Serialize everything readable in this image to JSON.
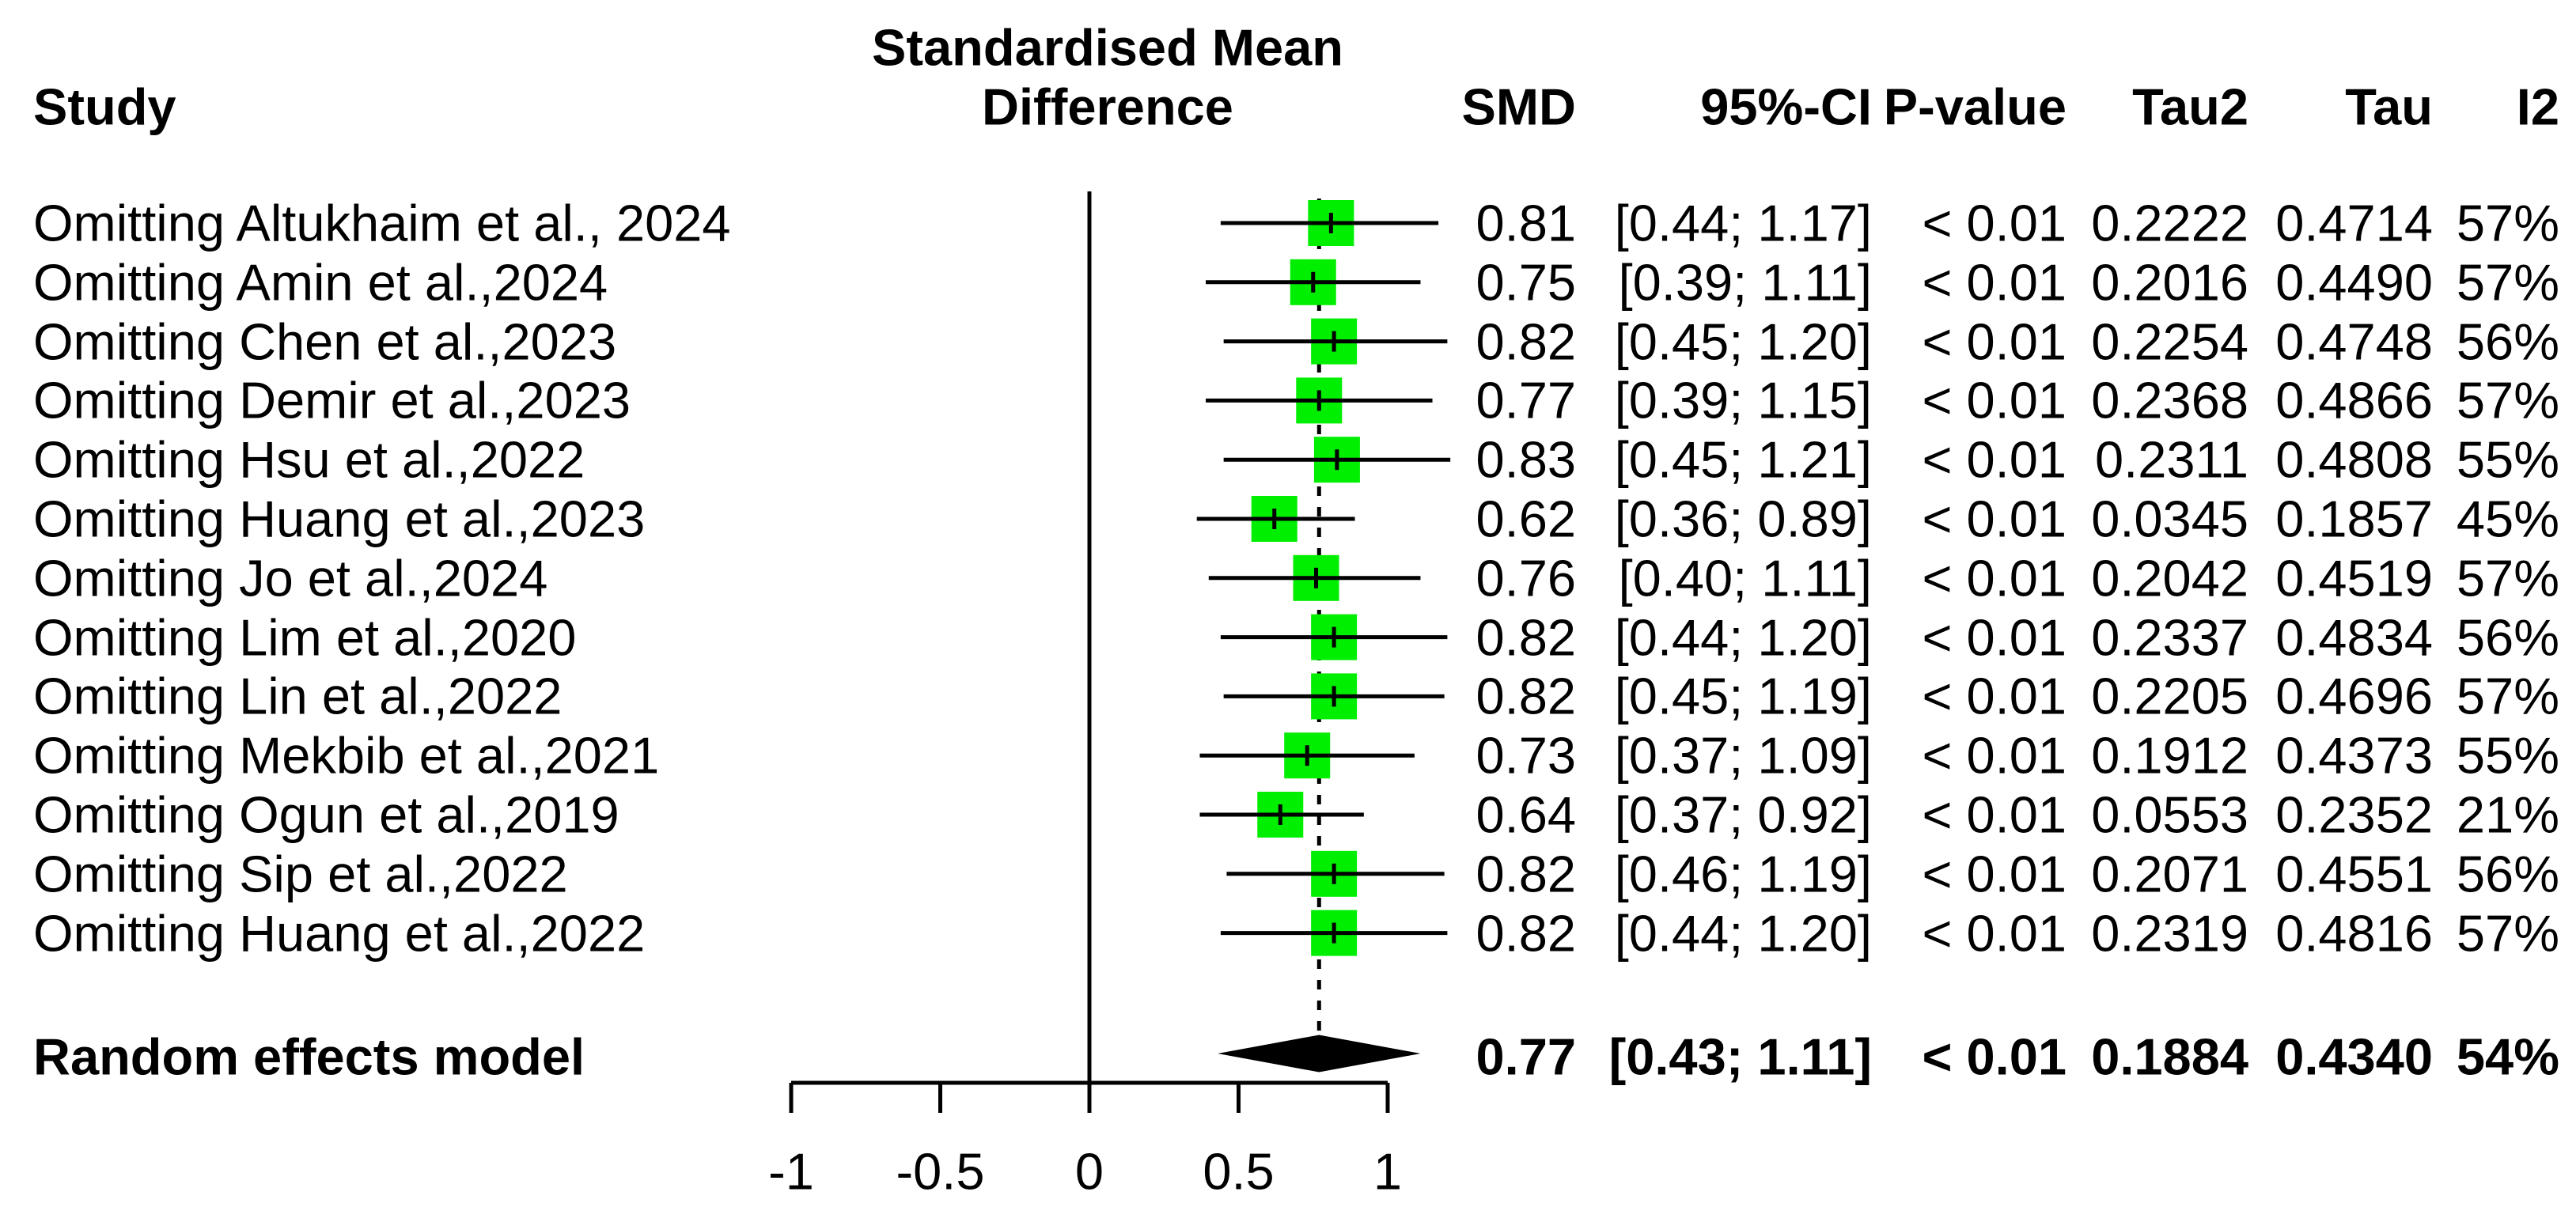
{
  "headers": {
    "study": "Study",
    "plot_title_line1": "Standardised Mean",
    "plot_title_line2": "Difference",
    "smd": "SMD",
    "ci": "95%-CI",
    "pvalue": "P-value",
    "tau2": "Tau2",
    "tau": "Tau",
    "i2": "I2"
  },
  "colors": {
    "marker_green": "#00ee00",
    "line_black": "#000000",
    "background": "#ffffff"
  },
  "chart_data": {
    "type": "scatter",
    "subtype": "forest-plot-leave-one-out-sensitivity",
    "xlabel": "",
    "xlim": [
      -1,
      1
    ],
    "xticks": [
      {
        "value": -1,
        "label": "-1"
      },
      {
        "value": -0.5,
        "label": "-0.5"
      },
      {
        "value": 0,
        "label": "0"
      },
      {
        "value": 0.5,
        "label": "0.5"
      },
      {
        "value": 1,
        "label": "1"
      }
    ],
    "reference_line_x": 0,
    "pooled_dashed_line_x": 0.77,
    "grid": false,
    "rows": [
      {
        "study": "Omitting Altukhaim et al., 2024",
        "smd": "0.81",
        "ci": "[0.44; 1.17]",
        "est": 0.81,
        "lo": 0.44,
        "hi": 1.17,
        "pvalue": "< 0.01",
        "tau2": "0.2222",
        "tau": "0.4714",
        "i2": "57%"
      },
      {
        "study": "Omitting Amin et al.,2024",
        "smd": "0.75",
        "ci": "[0.39; 1.11]",
        "est": 0.75,
        "lo": 0.39,
        "hi": 1.11,
        "pvalue": "< 0.01",
        "tau2": "0.2016",
        "tau": "0.4490",
        "i2": "57%"
      },
      {
        "study": "Omitting Chen et al.,2023",
        "smd": "0.82",
        "ci": "[0.45; 1.20]",
        "est": 0.82,
        "lo": 0.45,
        "hi": 1.2,
        "pvalue": "< 0.01",
        "tau2": "0.2254",
        "tau": "0.4748",
        "i2": "56%"
      },
      {
        "study": "Omitting Demir et al.,2023",
        "smd": "0.77",
        "ci": "[0.39; 1.15]",
        "est": 0.77,
        "lo": 0.39,
        "hi": 1.15,
        "pvalue": "< 0.01",
        "tau2": "0.2368",
        "tau": "0.4866",
        "i2": "57%"
      },
      {
        "study": "Omitting Hsu et al.,2022",
        "smd": "0.83",
        "ci": "[0.45; 1.21]",
        "est": 0.83,
        "lo": 0.45,
        "hi": 1.21,
        "pvalue": "< 0.01",
        "tau2": "0.2311",
        "tau": "0.4808",
        "i2": "55%"
      },
      {
        "study": "Omitting Huang et al.,2023",
        "smd": "0.62",
        "ci": "[0.36; 0.89]",
        "est": 0.62,
        "lo": 0.36,
        "hi": 0.89,
        "pvalue": "< 0.01",
        "tau2": "0.0345",
        "tau": "0.1857",
        "i2": "45%"
      },
      {
        "study": "Omitting Jo et al.,2024",
        "smd": "0.76",
        "ci": "[0.40; 1.11]",
        "est": 0.76,
        "lo": 0.4,
        "hi": 1.11,
        "pvalue": "< 0.01",
        "tau2": "0.2042",
        "tau": "0.4519",
        "i2": "57%"
      },
      {
        "study": "Omitting Lim et al.,2020",
        "smd": "0.82",
        "ci": "[0.44; 1.20]",
        "est": 0.82,
        "lo": 0.44,
        "hi": 1.2,
        "pvalue": "< 0.01",
        "tau2": "0.2337",
        "tau": "0.4834",
        "i2": "56%"
      },
      {
        "study": "Omitting Lin et al.,2022",
        "smd": "0.82",
        "ci": "[0.45; 1.19]",
        "est": 0.82,
        "lo": 0.45,
        "hi": 1.19,
        "pvalue": "< 0.01",
        "tau2": "0.2205",
        "tau": "0.4696",
        "i2": "57%"
      },
      {
        "study": "Omitting Mekbib et al.,2021",
        "smd": "0.73",
        "ci": "[0.37; 1.09]",
        "est": 0.73,
        "lo": 0.37,
        "hi": 1.09,
        "pvalue": "< 0.01",
        "tau2": "0.1912",
        "tau": "0.4373",
        "i2": "55%"
      },
      {
        "study": "Omitting Ogun et al.,2019",
        "smd": "0.64",
        "ci": "[0.37; 0.92]",
        "est": 0.64,
        "lo": 0.37,
        "hi": 0.92,
        "pvalue": "< 0.01",
        "tau2": "0.0553",
        "tau": "0.2352",
        "i2": "21%"
      },
      {
        "study": "Omitting Sip et al.,2022",
        "smd": "0.82",
        "ci": "[0.46; 1.19]",
        "est": 0.82,
        "lo": 0.46,
        "hi": 1.19,
        "pvalue": "< 0.01",
        "tau2": "0.2071",
        "tau": "0.4551",
        "i2": "56%"
      },
      {
        "study": "Omitting Huang et al.,2022",
        "smd": "0.82",
        "ci": "[0.44; 1.20]",
        "est": 0.82,
        "lo": 0.44,
        "hi": 1.2,
        "pvalue": "< 0.01",
        "tau2": "0.2319",
        "tau": "0.4816",
        "i2": "57%"
      }
    ],
    "summary": {
      "study": "Random effects model",
      "smd": "0.77",
      "ci": "[0.43; 1.11]",
      "est": 0.77,
      "lo": 0.43,
      "hi": 1.11,
      "pvalue": "< 0.01",
      "tau2": "0.1884",
      "tau": "0.4340",
      "i2": "54%"
    }
  }
}
